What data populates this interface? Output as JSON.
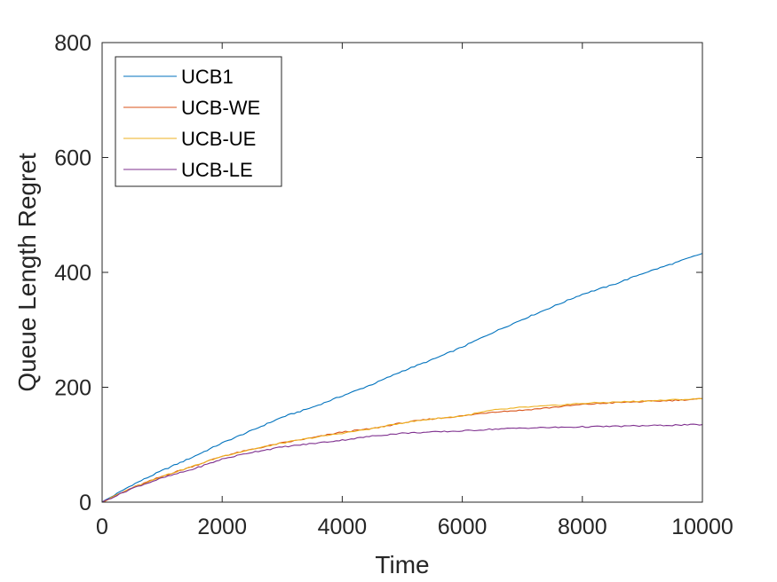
{
  "chart_data": {
    "type": "line",
    "title": "",
    "xlabel": "Time",
    "ylabel": "Queue Length Regret",
    "xlim": [
      0,
      10000
    ],
    "ylim": [
      0,
      800
    ],
    "xticks": [
      0,
      2000,
      4000,
      6000,
      8000,
      10000
    ],
    "yticks": [
      0,
      200,
      400,
      600,
      800
    ],
    "xtick_labels": [
      "0",
      "2000",
      "4000",
      "6000",
      "8000",
      "10000"
    ],
    "ytick_labels": [
      "0",
      "200",
      "400",
      "600",
      "800"
    ],
    "grid": false,
    "legend_position": "top-left",
    "series": [
      {
        "name": "UCB1",
        "color": "#0072BD",
        "x": [
          0,
          500,
          1000,
          1500,
          2000,
          2500,
          3000,
          3500,
          4000,
          4500,
          5000,
          5500,
          6000,
          6500,
          7000,
          7500,
          8000,
          8500,
          9000,
          9500,
          10000
        ],
        "y": [
          0,
          30,
          55,
          78,
          103,
          125,
          148,
          165,
          185,
          205,
          228,
          248,
          270,
          295,
          318,
          340,
          362,
          378,
          398,
          415,
          433
        ]
      },
      {
        "name": "UCB-WE",
        "color": "#D95319",
        "x": [
          0,
          500,
          1000,
          1500,
          2000,
          2500,
          3000,
          3500,
          4000,
          4500,
          5000,
          5500,
          6000,
          6500,
          7000,
          7500,
          8000,
          8500,
          9000,
          9500,
          10000
        ],
        "y": [
          0,
          25,
          45,
          62,
          80,
          92,
          103,
          112,
          122,
          128,
          138,
          145,
          150,
          157,
          160,
          165,
          170,
          173,
          175,
          177,
          180
        ]
      },
      {
        "name": "UCB-UE",
        "color": "#EDB120",
        "x": [
          0,
          500,
          1000,
          1500,
          2000,
          2500,
          3000,
          3500,
          4000,
          4500,
          5000,
          5500,
          6000,
          6500,
          7000,
          7500,
          8000,
          8500,
          9000,
          9500,
          10000
        ],
        "y": [
          0,
          25,
          45,
          62,
          80,
          92,
          103,
          112,
          120,
          128,
          138,
          145,
          150,
          160,
          165,
          168,
          172,
          174,
          176,
          178,
          180
        ]
      },
      {
        "name": "UCB-LE",
        "color": "#7E2F8E",
        "x": [
          0,
          500,
          1000,
          1500,
          2000,
          2500,
          3000,
          3500,
          4000,
          4500,
          5000,
          5500,
          6000,
          6500,
          7000,
          7500,
          8000,
          8500,
          9000,
          9500,
          10000
        ],
        "y": [
          0,
          24,
          42,
          57,
          75,
          87,
          96,
          102,
          108,
          115,
          120,
          122,
          124,
          127,
          129,
          130,
          131,
          132,
          133,
          134,
          135
        ]
      }
    ]
  }
}
